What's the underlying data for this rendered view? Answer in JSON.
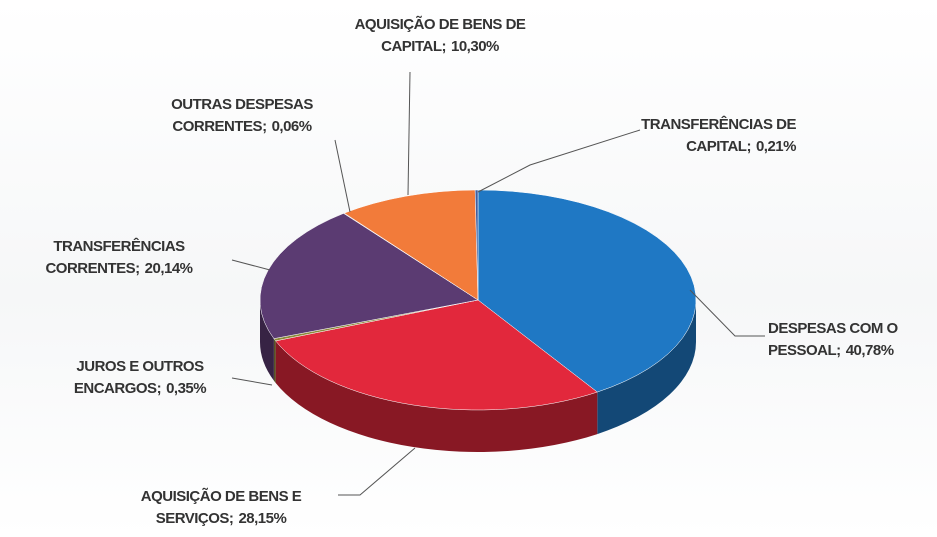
{
  "chart_data": {
    "type": "pie",
    "categories": [
      "DESPESAS COM O PESSOAL;",
      "AQUISIÇÃO DE BENS E SERVIÇOS;",
      "JUROS E OUTROS ENCARGOS;",
      "TRANSFERÊNCIAS CORRENTES;",
      "OUTRAS DESPESAS CORRENTES;",
      "AQUISIÇÃO DE BENS DE CAPITAL;",
      "TRANSFERÊNCIAS DE CAPITAL;"
    ],
    "values": [
      40.78,
      28.15,
      0.35,
      20.14,
      0.06,
      10.3,
      0.21
    ],
    "value_labels": [
      "40,78%",
      "28,15%",
      "0,35%",
      "20,14%",
      "0,06%",
      "10,30%",
      "0,21%"
    ],
    "colors": [
      "#1f78c4",
      "#e2283c",
      "#8c8a3c",
      "#5b3b72",
      "#9a9a9a",
      "#f27b3a",
      "#3f5fa0"
    ]
  }
}
